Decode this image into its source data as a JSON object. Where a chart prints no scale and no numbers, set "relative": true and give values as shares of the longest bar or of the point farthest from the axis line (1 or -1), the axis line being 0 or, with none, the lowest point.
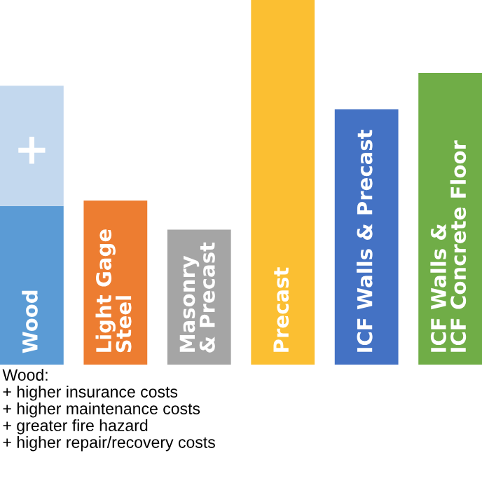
{
  "chart_data": {
    "type": "bar",
    "relative": true,
    "stacked": true,
    "categories": [
      "Wood",
      "Light Gage\nSteel",
      "Masonry\n& Precast",
      "Precast",
      "ICF Walls & Precast",
      "ICF Walls &\nICF Concrete Floor"
    ],
    "series": [
      {
        "colors": [
          "#5b9bd5",
          "#ed7d31",
          "#a5a5a5",
          "#fbbf32",
          "#4472c4",
          "#70ad47"
        ],
        "values": [
          0.435,
          0.45,
          0.37,
          1,
          0.7,
          0.8
        ]
      },
      {
        "color": "#c3d8ee",
        "values": [
          0.33,
          null,
          null,
          null,
          null,
          null
        ]
      }
    ],
    "annotations": [
      "+",
      "Wood:\n+ higher insurance costs\n+ higher maintenance costs\n+ greater fire hazard\n+ higher repair/recovery costs"
    ],
    "legend": false
  }
}
